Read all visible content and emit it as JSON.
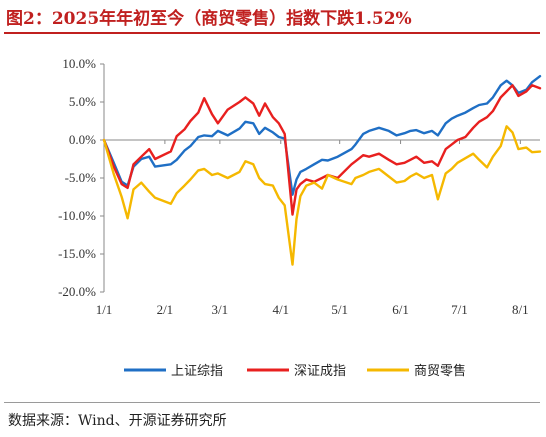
{
  "title": "图2：2025年年初至今（商贸零售）指数下跌1.52%",
  "source": "数据来源：Wind、开源证券研究所",
  "chart_data": {
    "type": "line",
    "x_ticks": [
      "1/1",
      "2/1",
      "3/1",
      "4/1",
      "5/1",
      "6/1",
      "7/1",
      "8/1"
    ],
    "y_ticks": [
      "10.0%",
      "5.0%",
      "0.0%",
      "-5.0%",
      "-10.0%",
      "-15.0%",
      "-20.0%"
    ],
    "ylim": [
      -20,
      10
    ],
    "x_range": [
      "1/1",
      "8/11"
    ],
    "legend_position": "bottom",
    "grid": false,
    "series": [
      {
        "name": "上证综指",
        "color": "#1f6fc5",
        "points": [
          [
            "1/1",
            0.0
          ],
          [
            "1/6",
            -3.0
          ],
          [
            "1/10",
            -5.5
          ],
          [
            "1/13",
            -6.0
          ],
          [
            "1/16",
            -3.5
          ],
          [
            "1/20",
            -2.5
          ],
          [
            "1/24",
            -2.2
          ],
          [
            "1/27",
            -3.5
          ],
          [
            "2/4",
            -3.2
          ],
          [
            "2/7",
            -2.6
          ],
          [
            "2/11",
            -1.4
          ],
          [
            "2/14",
            -0.8
          ],
          [
            "2/18",
            0.4
          ],
          [
            "2/21",
            0.6
          ],
          [
            "2/25",
            0.5
          ],
          [
            "2/28",
            1.2
          ],
          [
            "3/5",
            0.6
          ],
          [
            "3/11",
            1.5
          ],
          [
            "3/14",
            2.4
          ],
          [
            "3/18",
            2.2
          ],
          [
            "3/21",
            0.8
          ],
          [
            "3/24",
            1.6
          ],
          [
            "3/28",
            1.0
          ],
          [
            "3/31",
            0.4
          ],
          [
            "4/3",
            0.2
          ],
          [
            "4/7",
            -7.2
          ],
          [
            "4/9",
            -5.2
          ],
          [
            "4/11",
            -4.2
          ],
          [
            "4/14",
            -3.8
          ],
          [
            "4/18",
            -3.2
          ],
          [
            "4/22",
            -2.6
          ],
          [
            "4/25",
            -2.7
          ],
          [
            "4/30",
            -2.2
          ],
          [
            "5/7",
            -1.2
          ],
          [
            "5/9",
            -0.6
          ],
          [
            "5/13",
            0.8
          ],
          [
            "5/16",
            1.2
          ],
          [
            "5/21",
            1.6
          ],
          [
            "5/26",
            1.2
          ],
          [
            "5/30",
            0.6
          ],
          [
            "6/3",
            0.9
          ],
          [
            "6/6",
            1.2
          ],
          [
            "6/9",
            1.3
          ],
          [
            "6/13",
            0.9
          ],
          [
            "6/17",
            1.2
          ],
          [
            "6/20",
            0.6
          ],
          [
            "6/24",
            2.2
          ],
          [
            "6/27",
            2.8
          ],
          [
            "6/30",
            3.2
          ],
          [
            "7/4",
            3.6
          ],
          [
            "7/8",
            4.2
          ],
          [
            "7/11",
            4.6
          ],
          [
            "7/15",
            4.8
          ],
          [
            "7/18",
            5.6
          ],
          [
            "7/22",
            7.2
          ],
          [
            "7/25",
            7.8
          ],
          [
            "7/28",
            7.2
          ],
          [
            "7/31",
            6.2
          ],
          [
            "8/4",
            6.6
          ],
          [
            "8/7",
            7.6
          ],
          [
            "8/11",
            8.4
          ]
        ]
      },
      {
        "name": "深证成指",
        "color": "#e8201f",
        "points": [
          [
            "1/1",
            0.0
          ],
          [
            "1/6",
            -3.5
          ],
          [
            "1/10",
            -5.8
          ],
          [
            "1/13",
            -6.3
          ],
          [
            "1/16",
            -3.2
          ],
          [
            "1/20",
            -2.2
          ],
          [
            "1/24",
            -1.2
          ],
          [
            "1/27",
            -2.5
          ],
          [
            "2/4",
            -1.5
          ],
          [
            "2/7",
            0.5
          ],
          [
            "2/11",
            1.4
          ],
          [
            "2/14",
            2.5
          ],
          [
            "2/18",
            3.6
          ],
          [
            "2/21",
            5.5
          ],
          [
            "2/25",
            3.4
          ],
          [
            "2/28",
            2.2
          ],
          [
            "3/5",
            4.0
          ],
          [
            "3/11",
            5.0
          ],
          [
            "3/14",
            5.6
          ],
          [
            "3/18",
            4.8
          ],
          [
            "3/21",
            3.2
          ],
          [
            "3/24",
            4.8
          ],
          [
            "3/28",
            3.0
          ],
          [
            "3/31",
            2.2
          ],
          [
            "4/3",
            0.8
          ],
          [
            "4/7",
            -9.8
          ],
          [
            "4/9",
            -6.5
          ],
          [
            "4/11",
            -5.8
          ],
          [
            "4/14",
            -5.2
          ],
          [
            "4/18",
            -5.5
          ],
          [
            "4/22",
            -5.0
          ],
          [
            "4/25",
            -4.6
          ],
          [
            "4/30",
            -5.0
          ],
          [
            "5/7",
            -3.2
          ],
          [
            "5/9",
            -2.8
          ],
          [
            "5/13",
            -2.0
          ],
          [
            "5/16",
            -2.2
          ],
          [
            "5/21",
            -1.8
          ],
          [
            "5/26",
            -2.6
          ],
          [
            "5/30",
            -3.2
          ],
          [
            "6/3",
            -3.0
          ],
          [
            "6/6",
            -2.6
          ],
          [
            "6/9",
            -2.2
          ],
          [
            "6/13",
            -3.0
          ],
          [
            "6/17",
            -2.8
          ],
          [
            "6/20",
            -3.4
          ],
          [
            "6/24",
            -1.2
          ],
          [
            "6/27",
            -0.6
          ],
          [
            "6/30",
            0.0
          ],
          [
            "7/4",
            0.4
          ],
          [
            "7/8",
            1.6
          ],
          [
            "7/11",
            2.4
          ],
          [
            "7/15",
            3.0
          ],
          [
            "7/18",
            3.8
          ],
          [
            "7/22",
            5.6
          ],
          [
            "7/25",
            6.4
          ],
          [
            "7/28",
            7.2
          ],
          [
            "7/31",
            5.8
          ],
          [
            "8/4",
            6.4
          ],
          [
            "8/7",
            7.2
          ],
          [
            "8/11",
            6.8
          ]
        ]
      },
      {
        "name": "商贸零售",
        "color": "#f5b800",
        "points": [
          [
            "1/1",
            0.0
          ],
          [
            "1/6",
            -4.5
          ],
          [
            "1/10",
            -7.5
          ],
          [
            "1/13",
            -10.3
          ],
          [
            "1/16",
            -6.5
          ],
          [
            "1/20",
            -5.6
          ],
          [
            "1/24",
            -6.8
          ],
          [
            "1/27",
            -7.6
          ],
          [
            "2/4",
            -8.4
          ],
          [
            "2/7",
            -7.0
          ],
          [
            "2/11",
            -6.0
          ],
          [
            "2/14",
            -5.2
          ],
          [
            "2/18",
            -4.0
          ],
          [
            "2/21",
            -3.8
          ],
          [
            "2/25",
            -4.6
          ],
          [
            "2/28",
            -4.4
          ],
          [
            "3/5",
            -5.0
          ],
          [
            "3/11",
            -4.2
          ],
          [
            "3/14",
            -2.8
          ],
          [
            "3/18",
            -3.2
          ],
          [
            "3/21",
            -5.0
          ],
          [
            "3/24",
            -5.8
          ],
          [
            "3/28",
            -6.0
          ],
          [
            "3/31",
            -7.6
          ],
          [
            "4/3",
            -8.6
          ],
          [
            "4/7",
            -16.4
          ],
          [
            "4/9",
            -10.4
          ],
          [
            "4/11",
            -7.4
          ],
          [
            "4/14",
            -6.0
          ],
          [
            "4/18",
            -5.6
          ],
          [
            "4/22",
            -6.4
          ],
          [
            "4/25",
            -4.6
          ],
          [
            "4/30",
            -5.2
          ],
          [
            "5/7",
            -5.8
          ],
          [
            "5/9",
            -5.0
          ],
          [
            "5/13",
            -4.6
          ],
          [
            "5/16",
            -4.2
          ],
          [
            "5/21",
            -3.8
          ],
          [
            "5/26",
            -4.8
          ],
          [
            "5/30",
            -5.6
          ],
          [
            "6/3",
            -5.4
          ],
          [
            "6/6",
            -4.8
          ],
          [
            "6/9",
            -4.4
          ],
          [
            "6/13",
            -5.0
          ],
          [
            "6/17",
            -4.6
          ],
          [
            "6/20",
            -7.8
          ],
          [
            "6/24",
            -4.4
          ],
          [
            "6/27",
            -3.8
          ],
          [
            "6/30",
            -3.0
          ],
          [
            "7/4",
            -2.4
          ],
          [
            "7/8",
            -1.8
          ],
          [
            "7/11",
            -2.6
          ],
          [
            "7/15",
            -3.6
          ],
          [
            "7/18",
            -2.2
          ],
          [
            "7/22",
            -0.8
          ],
          [
            "7/25",
            1.8
          ],
          [
            "7/28",
            1.0
          ],
          [
            "7/31",
            -1.2
          ],
          [
            "8/4",
            -1.0
          ],
          [
            "8/7",
            -1.6
          ],
          [
            "8/11",
            -1.52
          ]
        ]
      }
    ]
  }
}
